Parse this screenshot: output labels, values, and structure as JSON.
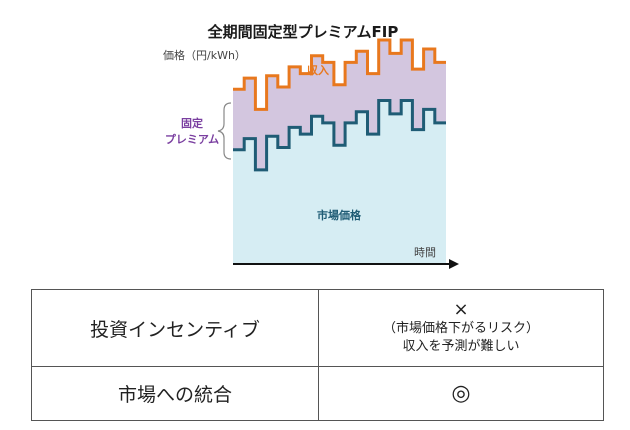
{
  "diagram": {
    "title": "全期間固定型プレミアムFIP",
    "y_axis_label": "価格（円/kWh）",
    "x_axis_label": "時間",
    "income_label": "収入",
    "premium_label_line1": "固定",
    "premium_label_line2": "プレミアム",
    "market_price_label": "市場価格",
    "colors": {
      "income": "#e8781e",
      "market": "#1f5c75",
      "premium_fill": "#d3c6df",
      "market_fill": "#d6edf3",
      "premium_text": "#7a3fa0",
      "axis": "#111111"
    },
    "series": {
      "type": "step",
      "note": "relative price levels (0 = bottom axis, 100 = top); income = market price + fixed premium",
      "market_price": [
        51,
        56,
        42,
        57,
        52,
        61,
        58,
        66,
        63,
        53,
        63,
        68,
        58,
        73,
        67,
        73,
        60,
        69,
        63
      ],
      "fixed_premium": 27
    }
  },
  "table": {
    "rows": [
      {
        "label": "投資インセンティブ",
        "mark": "×",
        "note_line1": "（市場価格下がるリスク）",
        "note_line2": "収入を予測が難しい"
      },
      {
        "label": "市場への統合",
        "mark": "◎"
      }
    ]
  }
}
